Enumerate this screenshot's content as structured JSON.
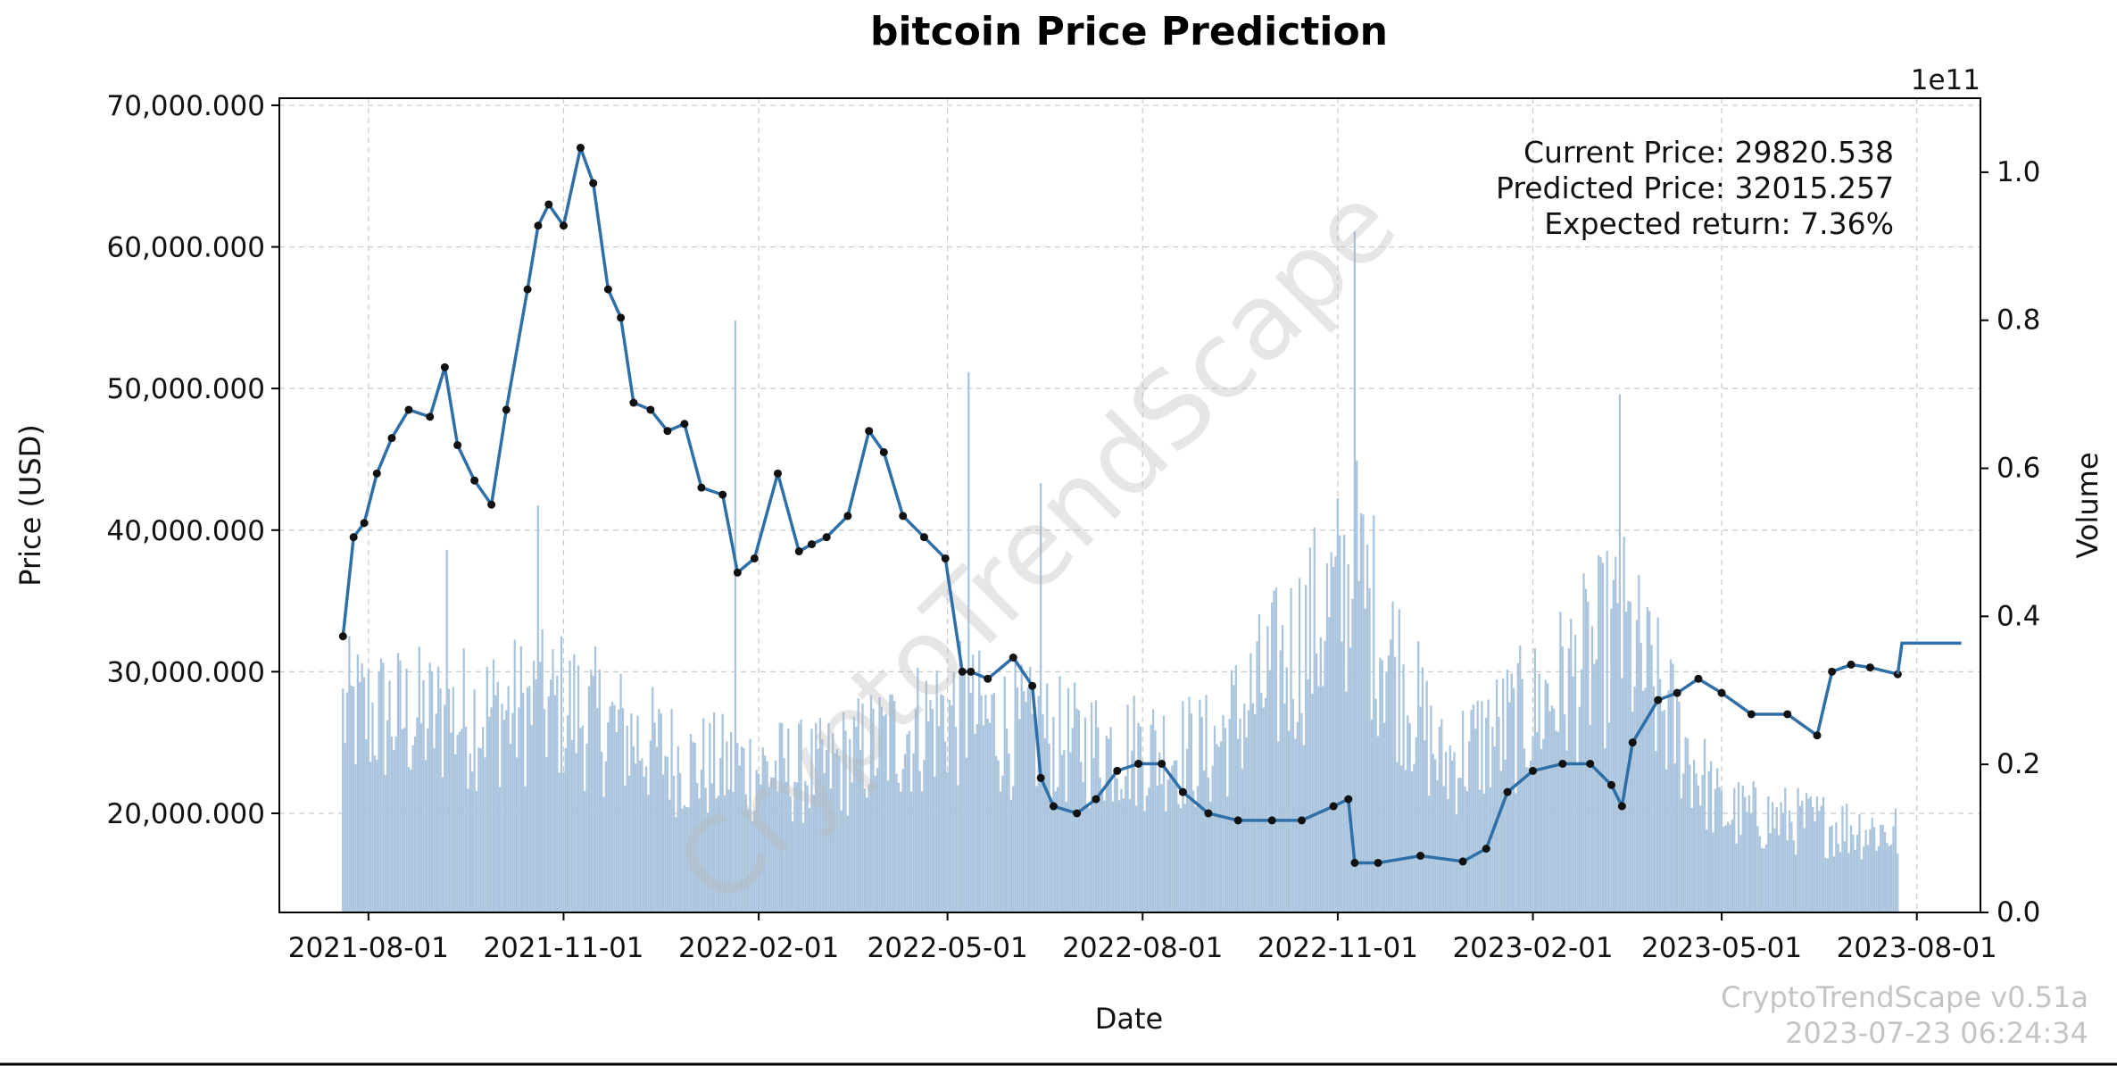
{
  "chart_data": {
    "type": "line",
    "title": "bitcoin Price Prediction",
    "xlabel": "Date",
    "ylabel": "Price (USD)",
    "y2label": "Volume",
    "y2_scale_label": "1e11",
    "x_range": [
      "2021-06-20",
      "2023-08-31"
    ],
    "ylim": [
      13000000,
      70500000
    ],
    "y2lim": [
      0,
      1.1
    ],
    "grid": true,
    "x_ticks": [
      "2021-08-01",
      "2021-11-01",
      "2022-02-01",
      "2022-05-01",
      "2022-08-01",
      "2022-11-01",
      "2023-02-01",
      "2023-05-01",
      "2023-08-01"
    ],
    "y_ticks": [
      {
        "value": 20000000,
        "label": "20,000.000"
      },
      {
        "value": 30000000,
        "label": "30,000.000"
      },
      {
        "value": 40000000,
        "label": "40,000.000"
      },
      {
        "value": 50000000,
        "label": "50,000.000"
      },
      {
        "value": 60000000,
        "label": "60,000.000"
      },
      {
        "value": 70000000,
        "label": "70,000.000"
      }
    ],
    "y2_ticks": [
      {
        "value": 0.0,
        "label": "0.0"
      },
      {
        "value": 0.2,
        "label": "0.2"
      },
      {
        "value": 0.4,
        "label": "0.4"
      },
      {
        "value": 0.6,
        "label": "0.6"
      },
      {
        "value": 0.8,
        "label": "0.8"
      },
      {
        "value": 1.0,
        "label": "1.0"
      }
    ],
    "price_series": {
      "dates": [
        "2021-07-20",
        "2021-07-25",
        "2021-07-30",
        "2021-08-05",
        "2021-08-12",
        "2021-08-20",
        "2021-08-30",
        "2021-09-06",
        "2021-09-12",
        "2021-09-20",
        "2021-09-28",
        "2021-10-05",
        "2021-10-15",
        "2021-10-20",
        "2021-10-25",
        "2021-11-01",
        "2021-11-09",
        "2021-11-15",
        "2021-11-22",
        "2021-11-28",
        "2021-12-04",
        "2021-12-12",
        "2021-12-20",
        "2021-12-28",
        "2022-01-05",
        "2022-01-15",
        "2022-01-22",
        "2022-01-30",
        "2022-02-10",
        "2022-02-20",
        "2022-02-26",
        "2022-03-05",
        "2022-03-15",
        "2022-03-25",
        "2022-04-01",
        "2022-04-10",
        "2022-04-20",
        "2022-04-30",
        "2022-05-08",
        "2022-05-12",
        "2022-05-20",
        "2022-06-01",
        "2022-06-10",
        "2022-06-14",
        "2022-06-20",
        "2022-07-01",
        "2022-07-10",
        "2022-07-20",
        "2022-07-30",
        "2022-08-10",
        "2022-08-20",
        "2022-09-01",
        "2022-09-15",
        "2022-10-01",
        "2022-10-15",
        "2022-10-30",
        "2022-11-06",
        "2022-11-09",
        "2022-11-20",
        "2022-12-10",
        "2022-12-30",
        "2023-01-10",
        "2023-01-20",
        "2023-02-01",
        "2023-02-15",
        "2023-02-28",
        "2023-03-10",
        "2023-03-15",
        "2023-03-20",
        "2023-04-01",
        "2023-04-10",
        "2023-04-20",
        "2023-05-01",
        "2023-05-15",
        "2023-06-01",
        "2023-06-15",
        "2023-06-22",
        "2023-07-01",
        "2023-07-10",
        "2023-07-23"
      ],
      "values": [
        32500000,
        39500000,
        40500000,
        44000000,
        46500000,
        48500000,
        48000000,
        51500000,
        46000000,
        43500000,
        41800000,
        48500000,
        57000000,
        61500000,
        63000000,
        61500000,
        67000000,
        64500000,
        57000000,
        55000000,
        49000000,
        48500000,
        47000000,
        47500000,
        43000000,
        42500000,
        37000000,
        38000000,
        44000000,
        38500000,
        39000000,
        39500000,
        41000000,
        47000000,
        45500000,
        41000000,
        39500000,
        38000000,
        30000000,
        30000000,
        29500000,
        31000000,
        29000000,
        22500000,
        20500000,
        20000000,
        21000000,
        23000000,
        23500000,
        23500000,
        21500000,
        20000000,
        19500000,
        19500000,
        19500000,
        20500000,
        21000000,
        16500000,
        16500000,
        17000000,
        16600000,
        17500000,
        21500000,
        23000000,
        23500000,
        23500000,
        22000000,
        20500000,
        25000000,
        28000000,
        28500000,
        29500000,
        28500000,
        27000000,
        27000000,
        25500000,
        30000000,
        30500000,
        30300000,
        29820538
      ]
    },
    "prediction_series": {
      "dates": [
        "2023-07-23",
        "2023-07-25",
        "2023-08-22"
      ],
      "values": [
        29820538,
        32015257,
        32015257
      ]
    },
    "volume_series": {
      "start": "2021-07-20",
      "end": "2023-07-23",
      "shape_points": [
        {
          "date": "2021-07-20",
          "value": 0.3
        },
        {
          "date": "2021-09-01",
          "value": 0.29
        },
        {
          "date": "2021-11-01",
          "value": 0.31
        },
        {
          "date": "2022-01-01",
          "value": 0.22
        },
        {
          "date": "2022-03-01",
          "value": 0.21
        },
        {
          "date": "2022-05-01",
          "value": 0.3
        },
        {
          "date": "2022-07-01",
          "value": 0.25
        },
        {
          "date": "2022-09-01",
          "value": 0.24
        },
        {
          "date": "2022-11-10",
          "value": 0.5
        },
        {
          "date": "2022-12-20",
          "value": 0.22
        },
        {
          "date": "2023-02-01",
          "value": 0.3
        },
        {
          "date": "2023-03-15",
          "value": 0.42
        },
        {
          "date": "2023-05-01",
          "value": 0.15
        },
        {
          "date": "2023-07-23",
          "value": 0.12
        }
      ],
      "spikes": [
        {
          "date": "2021-09-07",
          "value": 0.49
        },
        {
          "date": "2021-10-20",
          "value": 0.55
        },
        {
          "date": "2022-01-21",
          "value": 0.8
        },
        {
          "date": "2022-05-11",
          "value": 0.73
        },
        {
          "date": "2022-06-14",
          "value": 0.58
        },
        {
          "date": "2022-11-09",
          "value": 0.92
        },
        {
          "date": "2023-03-14",
          "value": 0.7
        }
      ]
    },
    "annotations": {
      "current_price": "Current Price: 29820.538",
      "predicted_price": "Predicted Price: 32015.257",
      "expected_return": "Expected return: 7.36%"
    },
    "watermark": "CryptoTrendScape",
    "footer": {
      "version": "CryptoTrendScape v0.51a",
      "timestamp": "2023-07-23 06:24:34"
    },
    "colors": {
      "price_line": "#2f6fa8",
      "price_marker": "#111111",
      "volume_bar": "#a9c4dc",
      "prediction_line": "#2f6fa8"
    }
  }
}
